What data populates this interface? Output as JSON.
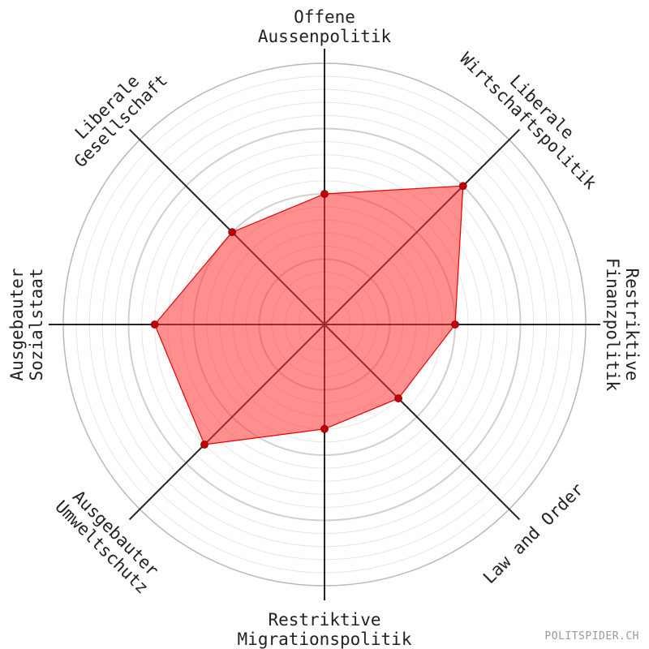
{
  "chart_data": {
    "type": "radar",
    "range": [
      0,
      100
    ],
    "rings_minor_step": 5,
    "rings_major_step": 25,
    "axes": [
      {
        "label": [
          "Offene",
          "Aussenpolitik"
        ],
        "value": 50
      },
      {
        "label": [
          "Liberale",
          "Wirtschaftspolitik"
        ],
        "value": 75
      },
      {
        "label": [
          "Restriktive",
          "Finanzpolitik"
        ],
        "value": 50
      },
      {
        "label": [
          "Law and Order"
        ],
        "value": 40
      },
      {
        "label": [
          "Restriktive",
          "Migrationspolitik"
        ],
        "value": 40
      },
      {
        "label": [
          "Ausgebauter",
          "Umweltschutz"
        ],
        "value": 65
      },
      {
        "label": [
          "Ausgebauter",
          "Sozialstaat"
        ],
        "value": 65
      },
      {
        "label": [
          "Liberale",
          "Gesellschaft"
        ],
        "value": 50
      }
    ],
    "colors": {
      "fill": "#ff3333",
      "stroke": "#e60000",
      "point": "#c00000",
      "axis": "#222222",
      "ring_minor": "#e6e6e6",
      "ring_major": "#d0d0d0",
      "outer_ring": "#b8b8b8"
    }
  },
  "watermark": "POLITSPIDER.CH"
}
